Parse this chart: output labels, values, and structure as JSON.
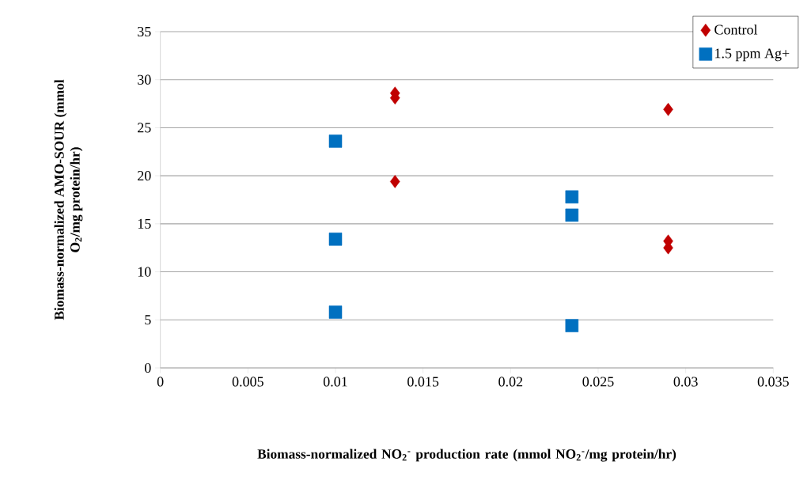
{
  "chart_data": {
    "type": "scatter",
    "xlabel": "Biomass-normalized NO$_{2}$$^{-}$ production rate (mmol NO$_{2}$$^{-}$/mg protein/hr)",
    "ylabel": "Biomass-normalized AMO-SOUR (mmol O$_{2}$/mg protein/hr)",
    "series": [
      {
        "name": "Control",
        "color": "#c00000",
        "marker": "diamond",
        "x": [
          0.0134,
          0.0134,
          0.0134,
          0.029,
          0.029,
          0.029
        ],
        "values": [
          28.6,
          28.1,
          19.4,
          26.9,
          13.2,
          12.5
        ]
      },
      {
        "name": "1.5 ppm Ag+",
        "color": "#0070c0",
        "marker": "square",
        "x": [
          0.01,
          0.01,
          0.01,
          0.0235,
          0.0235,
          0.0235
        ],
        "values": [
          23.6,
          13.4,
          5.8,
          17.8,
          15.9,
          4.4
        ]
      }
    ],
    "xlim": [
      0,
      0.035
    ],
    "xticks": [
      0,
      0.005,
      0.01,
      0.015,
      0.02,
      0.025,
      0.03,
      0.035
    ],
    "ylim": [
      0,
      35
    ],
    "yticks": [
      0,
      5,
      10,
      15,
      20,
      25,
      30,
      35
    ],
    "grid": "y",
    "legend": "top right"
  }
}
